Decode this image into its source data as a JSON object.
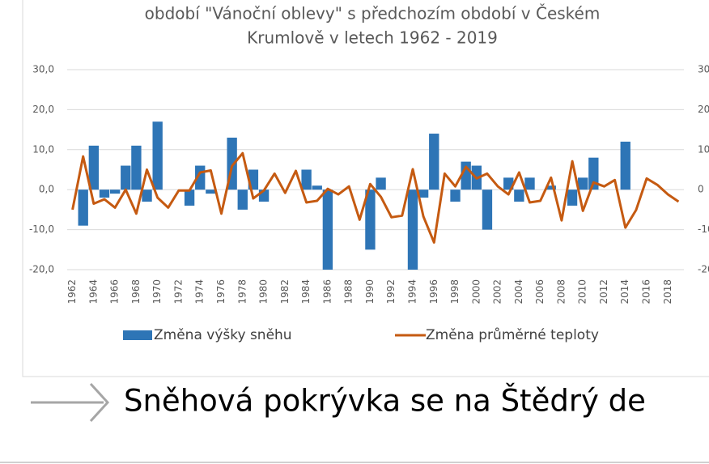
{
  "chart_data": {
    "type": "bar_line",
    "title": [
      "období \"Vánoční oblevy\" s předchozím období v Českém",
      "Krumlově v letech 1962 - 2019"
    ],
    "categories": [
      "1962",
      null,
      "1964",
      null,
      "1966",
      null,
      "1968",
      null,
      "1970",
      null,
      "1972",
      null,
      "1974",
      null,
      "1976",
      null,
      "1978",
      null,
      "1980",
      null,
      "1982",
      null,
      "1984",
      null,
      "1986",
      null,
      "1988",
      null,
      "1990",
      null,
      "1992",
      null,
      "1994",
      null,
      "1996",
      null,
      "1998",
      null,
      "2000",
      null,
      "2002",
      null,
      "2004",
      null,
      "2006",
      null,
      "2008",
      null,
      "2010",
      null,
      "2012",
      null,
      "2014",
      null,
      "2016",
      null,
      "2018",
      null
    ],
    "series": [
      {
        "name": "Změna výšky sněhu",
        "color": "#2e75b6",
        "type": "bar",
        "values": [
          0,
          -9,
          11,
          -2,
          -1,
          6,
          11,
          -3,
          17,
          0,
          0,
          -4,
          6,
          -1,
          0,
          13,
          -5,
          5,
          -3,
          0,
          0,
          0,
          5,
          1,
          -20,
          0,
          0,
          0,
          -15,
          3,
          0,
          0,
          -20,
          -2,
          14,
          0,
          -3,
          7,
          6,
          -10,
          0,
          3,
          -3,
          3,
          0,
          1,
          0,
          -4,
          3,
          8,
          0,
          0,
          12,
          0,
          0,
          0,
          0,
          0
        ]
      },
      {
        "name": "Změna průměrné teploty",
        "color": "#c55a11",
        "type": "line",
        "axis": "y2",
        "values": [
          -5,
          8.3,
          -3.5,
          -2.4,
          -4.5,
          0,
          -6,
          5,
          -2,
          -4.5,
          -0.2,
          -0.2,
          4.3,
          4.8,
          -6,
          5.9,
          9.1,
          -2.2,
          -0.2,
          4,
          -0.8,
          4.7,
          -3.2,
          -2.8,
          0.2,
          -1.2,
          0.8,
          -7.5,
          1.4,
          -1.8,
          -6.9,
          -6.5,
          5.1,
          -6.7,
          -13.2,
          4,
          0.8,
          5.7,
          2.8,
          4,
          0.8,
          -1.2,
          4.3,
          -3.2,
          -2.8,
          3,
          -7.7,
          7.1,
          -5.3,
          1.8,
          0.8,
          2.4,
          -9.5,
          -5.1,
          2.8,
          1.2,
          -1.2,
          -3
        ]
      }
    ],
    "ylim": [
      -20,
      30
    ],
    "yticks": [
      {
        "value": -20,
        "label": "-20,0"
      },
      {
        "value": -10,
        "label": "-10,0"
      },
      {
        "value": 0,
        "label": "0,0"
      },
      {
        "value": 10,
        "label": "10,0"
      },
      {
        "value": 20,
        "label": "20,0"
      },
      {
        "value": 30,
        "label": "30,0"
      }
    ],
    "y2lim": [
      -20,
      30
    ],
    "y2ticks": [
      -20,
      -10,
      0,
      10,
      20,
      30
    ],
    "grid": true,
    "legend": "bottom"
  },
  "caption": "Sněhová pokrývka se na Štědrý de"
}
